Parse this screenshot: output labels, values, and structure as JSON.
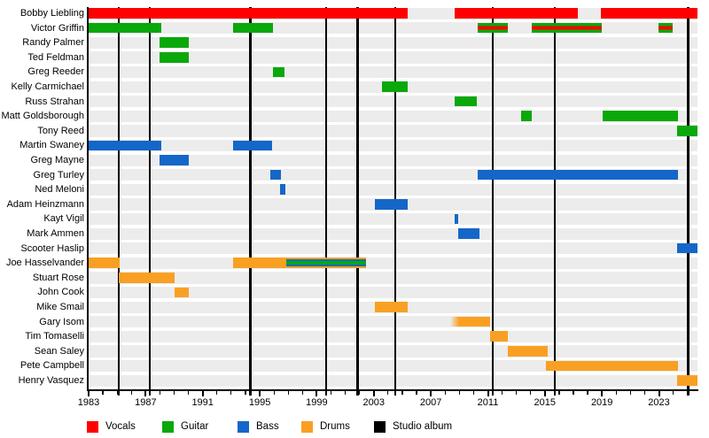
{
  "colors": {
    "vocals": "#fe0000",
    "guitar": "#0aa80a",
    "bass": "#1467c8",
    "drums": "#f9a023",
    "album": "#000000",
    "row_band": "#ececec",
    "axis": "#000000"
  },
  "legend": [
    {
      "id": "vocals",
      "label": "Vocals"
    },
    {
      "id": "guitar",
      "label": "Guitar"
    },
    {
      "id": "bass",
      "label": "Bass"
    },
    {
      "id": "drums",
      "label": "Drums"
    },
    {
      "id": "album",
      "label": "Studio album"
    }
  ],
  "chart_data": {
    "type": "timeline-gantt",
    "x_axis": {
      "start_year": 1983,
      "end_year": 2025.7,
      "major_tick_step": 4,
      "minor_tick_step": 1,
      "tick_labels": [
        "1983",
        "1987",
        "1991",
        "1995",
        "1999",
        "2003",
        "2007",
        "2011",
        "2015",
        "2019",
        "2023"
      ],
      "tick_years": [
        1983,
        1987,
        1991,
        1995,
        1999,
        2003,
        2007,
        2011,
        2015,
        2019,
        2023
      ]
    },
    "album_lines_years": [
      1985.1,
      1987.3,
      1994.35,
      1999.65,
      2001.85,
      2004.5,
      2011.35,
      2015.7,
      2025.05
    ],
    "members": [
      {
        "name": "Bobby Liebling",
        "bars": [
          {
            "roles": [
              "vocals"
            ],
            "start": 1983,
            "end": 2005.4
          },
          {
            "roles": [
              "vocals"
            ],
            "start": 2008.65,
            "end": 2017.3
          },
          {
            "roles": [
              "vocals"
            ],
            "start": 2018.9,
            "end": 2025.7
          }
        ]
      },
      {
        "name": "Victor Griffin",
        "bars": [
          {
            "roles": [
              "guitar"
            ],
            "start": 1983,
            "end": 1988.1
          },
          {
            "roles": [
              "guitar"
            ],
            "start": 1993.15,
            "end": 1995.95
          },
          {
            "roles": [
              "guitar",
              "vocals"
            ],
            "start": 2010.3,
            "end": 2012.4
          },
          {
            "roles": [
              "guitar",
              "vocals"
            ],
            "start": 2014.05,
            "end": 2019.0
          },
          {
            "roles": [
              "guitar",
              "vocals"
            ],
            "start": 2022.95,
            "end": 2023.95
          }
        ]
      },
      {
        "name": "Randy Palmer",
        "bars": [
          {
            "roles": [
              "guitar"
            ],
            "start": 1988.0,
            "end": 1990.0
          }
        ]
      },
      {
        "name": "Ted Feldman",
        "bars": [
          {
            "roles": [
              "guitar"
            ],
            "start": 1988.0,
            "end": 1990.0
          }
        ]
      },
      {
        "name": "Greg Reeder",
        "bars": [
          {
            "roles": [
              "guitar"
            ],
            "start": 1995.95,
            "end": 1996.75
          }
        ]
      },
      {
        "name": "Kelly Carmichael",
        "bars": [
          {
            "roles": [
              "guitar"
            ],
            "start": 2003.6,
            "end": 2005.4
          }
        ]
      },
      {
        "name": "Russ Strahan",
        "bars": [
          {
            "roles": [
              "guitar"
            ],
            "start": 2008.65,
            "end": 2010.25
          }
        ]
      },
      {
        "name": "Matt Goldsborough",
        "bars": [
          {
            "roles": [
              "guitar"
            ],
            "start": 2013.3,
            "end": 2014.1
          },
          {
            "roles": [
              "guitar"
            ],
            "start": 2019.05,
            "end": 2024.35
          }
        ]
      },
      {
        "name": "Tony Reed",
        "bars": [
          {
            "roles": [
              "guitar"
            ],
            "start": 2024.25,
            "end": 2025.7
          }
        ]
      },
      {
        "name": "Martin Swaney",
        "bars": [
          {
            "roles": [
              "bass"
            ],
            "start": 1983,
            "end": 1988.1
          },
          {
            "roles": [
              "bass"
            ],
            "start": 1993.15,
            "end": 1995.9
          }
        ]
      },
      {
        "name": "Greg Mayne",
        "bars": [
          {
            "roles": [
              "bass"
            ],
            "start": 1988.0,
            "end": 1990.0
          }
        ]
      },
      {
        "name": "Greg Turley",
        "bars": [
          {
            "roles": [
              "bass"
            ],
            "start": 1995.75,
            "end": 1996.5
          },
          {
            "roles": [
              "bass"
            ],
            "start": 2010.3,
            "end": 2024.35
          }
        ]
      },
      {
        "name": "Ned Meloni",
        "bars": [
          {
            "roles": [
              "bass"
            ],
            "start": 1996.45,
            "end": 1996.8
          }
        ]
      },
      {
        "name": "Adam Heinzmann",
        "bars": [
          {
            "roles": [
              "bass"
            ],
            "start": 2003.05,
            "end": 2005.4
          }
        ]
      },
      {
        "name": "Kayt Vigil",
        "bars": [
          {
            "roles": [
              "bass"
            ],
            "start": 2008.65,
            "end": 2008.95
          }
        ]
      },
      {
        "name": "Mark Ammen",
        "bars": [
          {
            "roles": [
              "bass"
            ],
            "start": 2008.9,
            "end": 2010.4
          }
        ]
      },
      {
        "name": "Scooter Haslip",
        "bars": [
          {
            "roles": [
              "bass"
            ],
            "start": 2024.25,
            "end": 2025.7
          }
        ]
      },
      {
        "name": "Joe Hasselvander",
        "bars": [
          {
            "roles": [
              "drums"
            ],
            "start": 1983,
            "end": 1985.2
          },
          {
            "roles": [
              "drums"
            ],
            "start": 1993.15,
            "end": 1996.85
          },
          {
            "roles": [
              "drums",
              "bass",
              "guitar"
            ],
            "start": 1996.85,
            "end": 2002.45
          }
        ]
      },
      {
        "name": "Stuart Rose",
        "bars": [
          {
            "roles": [
              "drums"
            ],
            "start": 1985.1,
            "end": 1989.05
          }
        ]
      },
      {
        "name": "John Cook",
        "bars": [
          {
            "roles": [
              "drums"
            ],
            "start": 1989.05,
            "end": 1990.0
          }
        ]
      },
      {
        "name": "Mike Smail",
        "bars": [
          {
            "roles": [
              "drums"
            ],
            "start": 2003.05,
            "end": 2005.4
          }
        ]
      },
      {
        "name": "Gary Isom",
        "bars": [
          {
            "roles": [
              "drums"
            ],
            "start": 2008.35,
            "end": 2011.15,
            "fade_in": true
          }
        ]
      },
      {
        "name": "Tim Tomaselli",
        "bars": [
          {
            "roles": [
              "drums"
            ],
            "start": 2011.15,
            "end": 2012.4
          }
        ]
      },
      {
        "name": "Sean Saley",
        "bars": [
          {
            "roles": [
              "drums"
            ],
            "start": 2012.4,
            "end": 2015.2
          }
        ]
      },
      {
        "name": "Pete Campbell",
        "bars": [
          {
            "roles": [
              "drums"
            ],
            "start": 2015.1,
            "end": 2024.35
          }
        ]
      },
      {
        "name": "Henry Vasquez",
        "bars": [
          {
            "roles": [
              "drums"
            ],
            "start": 2024.25,
            "end": 2025.7
          }
        ]
      }
    ]
  }
}
